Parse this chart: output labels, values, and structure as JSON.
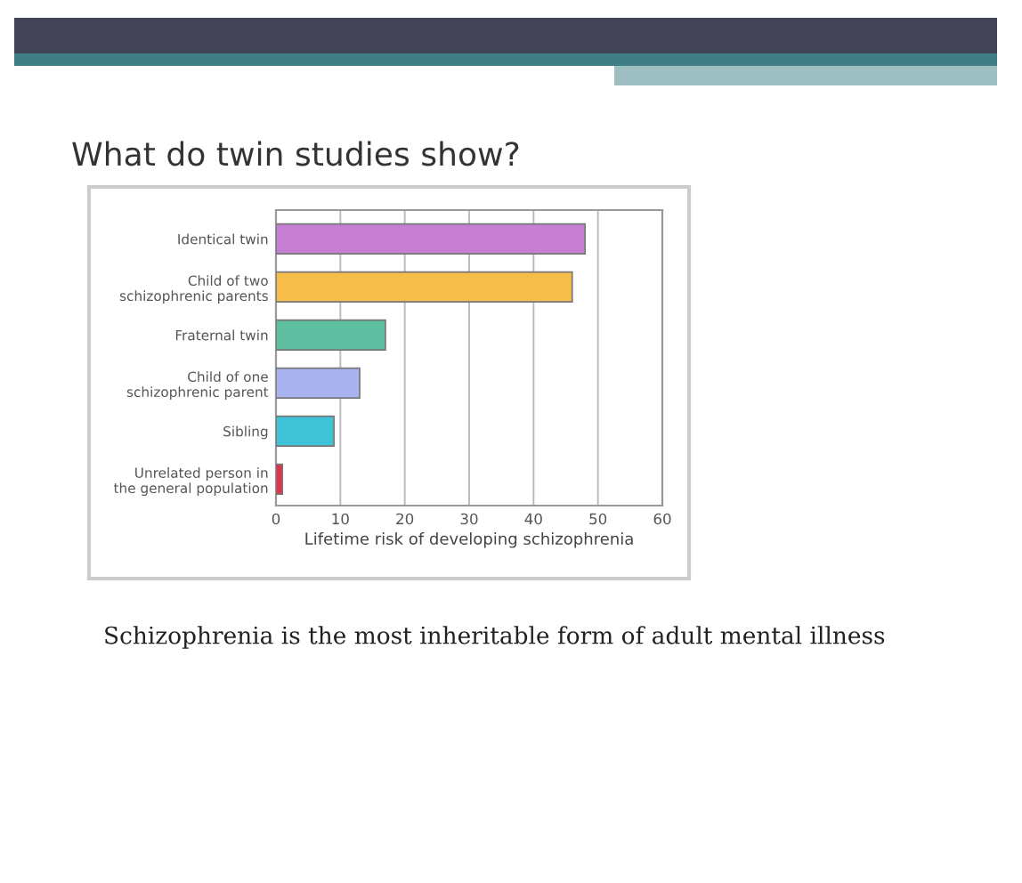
{
  "chart_data": {
    "type": "bar",
    "orientation": "horizontal",
    "title": "What do twin studies show?",
    "xlabel": "Lifetime risk of developing schizophrenia",
    "categories": [
      "Identical twin",
      "Child of two\nschizophrenic parents",
      "Fraternal twin",
      "Child of one\nschizophrenic parent",
      "Sibling",
      "Unrelated person in\nthe general population"
    ],
    "values": [
      48,
      46,
      17,
      13,
      9,
      1
    ],
    "colors": [
      "#c77fd4",
      "#f5bd4a",
      "#5dbf9f",
      "#a9b3f0",
      "#3fc3d6",
      "#e0344a"
    ],
    "xlim": [
      0,
      60
    ],
    "xticks": [
      0,
      10,
      20,
      30,
      40,
      50,
      60
    ],
    "grid": "x",
    "annotations": [
      "Schizophrenia is the most inheritable form of adult mental illness"
    ]
  }
}
